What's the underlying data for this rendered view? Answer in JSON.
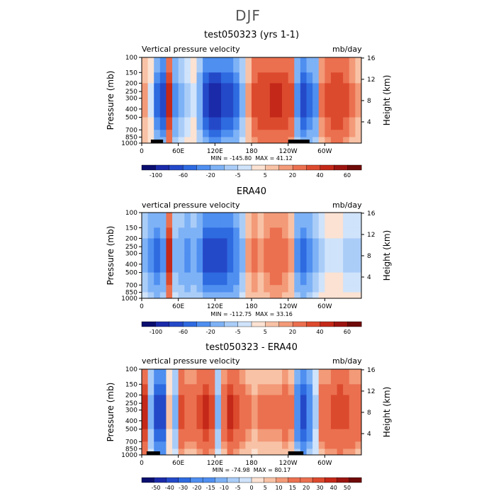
{
  "figure": {
    "season": "DJF",
    "units_label": "mb/day",
    "ylabel_left": "Pressure (mb)",
    "ylabel_right": "Height (km)"
  },
  "chart_data": [
    {
      "type": "heatmap",
      "title": "test050323 (yrs 1-1)",
      "subtitle": "Vertical pressure velocity",
      "units": "mb/day",
      "xlabel": "",
      "ylabel": "Pressure (mb)",
      "ylabel_right": "Height (km)",
      "x_ticks": [
        "0",
        "60E",
        "120E",
        "180",
        "120W",
        "60W"
      ],
      "x_tick_values": [
        0,
        60,
        120,
        180,
        240,
        300
      ],
      "xlim": [
        0,
        360
      ],
      "y_ticks": [
        "100",
        "150",
        "200",
        "250",
        "300",
        "400",
        "500",
        "700",
        "850",
        "1000"
      ],
      "y_tick_values": [
        100,
        150,
        200,
        250,
        300,
        400,
        500,
        700,
        850,
        1000
      ],
      "ylim": [
        1000,
        100
      ],
      "right_ticks": [
        "4",
        "8",
        "12",
        "16"
      ],
      "right_tick_values": [
        4,
        8,
        12,
        16
      ],
      "min_label": "MIN = -145.80",
      "max_label": "MAX = 41.12",
      "colorbar_labels": [
        "-100",
        "-60",
        "-20",
        "-5",
        "5",
        "20",
        "40",
        "60"
      ],
      "levels": [
        -120,
        -100,
        -80,
        -60,
        -40,
        -20,
        -10,
        -5,
        0,
        5,
        10,
        20,
        30,
        40,
        60
      ],
      "topography": [
        [
          15,
          35
        ],
        [
          240,
          275
        ]
      ],
      "field_profile": {
        "lon": [
          0,
          10,
          20,
          30,
          40,
          50,
          60,
          70,
          80,
          90,
          100,
          110,
          120,
          130,
          140,
          150,
          160,
          170,
          180,
          190,
          200,
          210,
          220,
          230,
          240,
          250,
          260,
          270,
          280,
          290,
          300,
          310,
          320,
          330,
          340,
          350
        ],
        "omega": [
          5,
          -5,
          -60,
          -80,
          30,
          -40,
          -20,
          -10,
          -5,
          -30,
          -80,
          -100,
          -100,
          -90,
          -80,
          -60,
          -20,
          5,
          20,
          25,
          25,
          30,
          30,
          25,
          20,
          -40,
          -80,
          -60,
          -40,
          10,
          20,
          25,
          25,
          20,
          10,
          5
        ]
      }
    },
    {
      "type": "heatmap",
      "title": "ERA40",
      "subtitle": "vertical pressure velocity",
      "units": "mb/day",
      "xlabel": "",
      "ylabel": "Pressure (mb)",
      "ylabel_right": "Height (km)",
      "x_ticks": [
        "0",
        "60E",
        "120E",
        "180",
        "120W",
        "60W"
      ],
      "x_tick_values": [
        0,
        60,
        120,
        180,
        240,
        300
      ],
      "xlim": [
        0,
        360
      ],
      "y_ticks": [
        "100",
        "150",
        "200",
        "250",
        "300",
        "400",
        "500",
        "700",
        "850",
        "1000"
      ],
      "y_tick_values": [
        100,
        150,
        200,
        250,
        300,
        400,
        500,
        700,
        850,
        1000
      ],
      "ylim": [
        1000,
        100
      ],
      "right_ticks": [
        "4",
        "8",
        "12",
        "16"
      ],
      "right_tick_values": [
        4,
        8,
        12,
        16
      ],
      "min_label": "MIN = -112.75",
      "max_label": "MAX = 33.16",
      "colorbar_labels": [
        "-100",
        "-60",
        "-20",
        "-5",
        "5",
        "20",
        "40",
        "60"
      ],
      "levels": [
        -120,
        -100,
        -80,
        -60,
        -40,
        -20,
        -10,
        -5,
        0,
        5,
        10,
        20,
        30,
        40,
        60
      ],
      "topography": [],
      "field_profile": {
        "lon": [
          0,
          10,
          20,
          30,
          40,
          50,
          60,
          70,
          80,
          90,
          100,
          110,
          120,
          130,
          140,
          150,
          160,
          170,
          180,
          190,
          200,
          210,
          220,
          230,
          240,
          250,
          260,
          270,
          280,
          290,
          300,
          310,
          320,
          330,
          340,
          350
        ],
        "omega": [
          -20,
          -40,
          -60,
          -40,
          30,
          -20,
          -30,
          -40,
          -30,
          -40,
          -80,
          -90,
          -90,
          -80,
          -70,
          -50,
          -20,
          5,
          10,
          5,
          10,
          15,
          15,
          10,
          5,
          -40,
          -60,
          -40,
          -20,
          -10,
          -5,
          -5,
          -5,
          -10,
          -10,
          -10
        ]
      }
    },
    {
      "type": "heatmap",
      "title": "test050323 - ERA40",
      "subtitle": "vertical pressure velocity",
      "units": "mb/day",
      "xlabel": "",
      "ylabel": "Pressure (mb)",
      "ylabel_right": "Height (km)",
      "x_ticks": [
        "0",
        "60E",
        "120E",
        "180",
        "120W",
        "60W"
      ],
      "x_tick_values": [
        0,
        60,
        120,
        180,
        240,
        300
      ],
      "xlim": [
        0,
        360
      ],
      "y_ticks": [
        "100",
        "150",
        "200",
        "250",
        "300",
        "400",
        "500",
        "700",
        "850",
        "1000"
      ],
      "y_tick_values": [
        100,
        150,
        200,
        250,
        300,
        400,
        500,
        700,
        850,
        1000
      ],
      "ylim": [
        1000,
        100
      ],
      "right_ticks": [
        "4",
        "8",
        "12",
        "16"
      ],
      "right_tick_values": [
        4,
        8,
        12,
        16
      ],
      "min_label": "MIN = -74.98",
      "max_label": "MAX = 80.17",
      "colorbar_labels": [
        "-50",
        "-40",
        "-30",
        "-20",
        "-15",
        "-10",
        "-5",
        "0",
        "5",
        "10",
        "15",
        "20",
        "30",
        "40",
        "50"
      ],
      "levels": [
        -60,
        -50,
        -40,
        -30,
        -20,
        -15,
        -10,
        -5,
        0,
        5,
        10,
        15,
        20,
        30,
        40,
        50,
        60
      ],
      "topography": [
        [
          8,
          30
        ],
        [
          240,
          265
        ]
      ],
      "field_profile": {
        "lon": [
          0,
          10,
          20,
          30,
          40,
          50,
          60,
          70,
          80,
          90,
          100,
          110,
          120,
          130,
          140,
          150,
          160,
          170,
          180,
          190,
          200,
          210,
          220,
          230,
          240,
          250,
          260,
          270,
          280,
          290,
          300,
          310,
          320,
          330,
          340,
          350
        ],
        "omega": [
          40,
          -10,
          -40,
          -40,
          5,
          -10,
          30,
          20,
          20,
          30,
          40,
          30,
          -10,
          20,
          40,
          30,
          20,
          15,
          10,
          15,
          15,
          15,
          15,
          20,
          15,
          -20,
          -40,
          -20,
          -5,
          20,
          25,
          30,
          35,
          30,
          25,
          20
        ]
      }
    }
  ]
}
